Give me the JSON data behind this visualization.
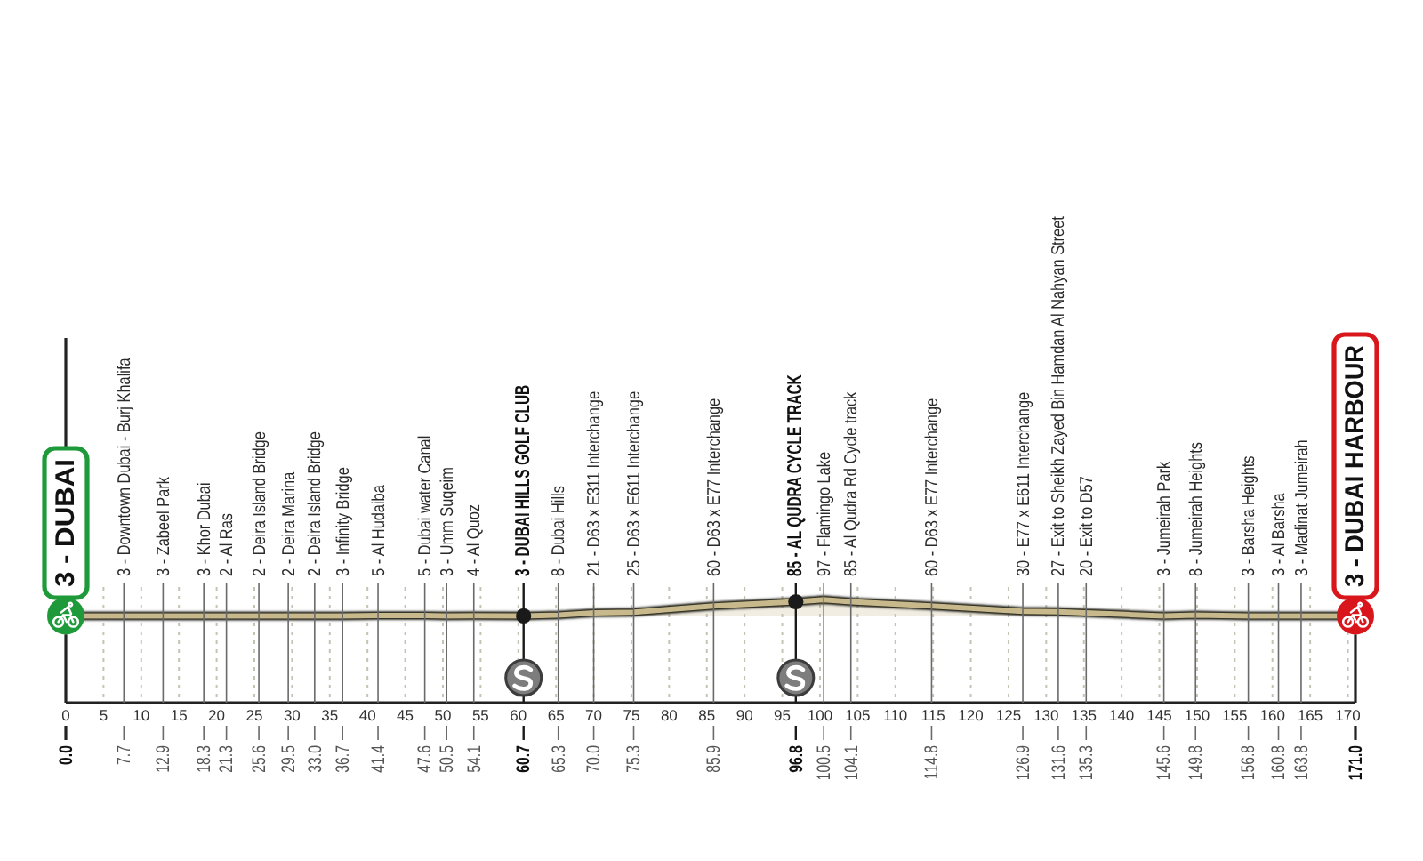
{
  "chart_data": {
    "type": "area",
    "xlim": [
      0,
      171
    ],
    "xticks": [
      0,
      5,
      10,
      15,
      20,
      25,
      30,
      35,
      40,
      45,
      50,
      55,
      60,
      65,
      70,
      75,
      80,
      85,
      90,
      95,
      100,
      105,
      110,
      115,
      120,
      125,
      130,
      135,
      140,
      145,
      150,
      155,
      160,
      165,
      170
    ],
    "x2lim": [
      0,
      171
    ],
    "x2ticks": [
      {
        "value": 0,
        "label": "0.0"
      },
      7.7,
      12.9,
      18.3,
      21.3,
      25.6,
      29.5,
      {
        "value": 33,
        "label": "33.0"
      },
      36.7,
      41.4,
      47.6,
      50.5,
      54.1,
      60.7,
      65.3,
      {
        "value": 70,
        "label": "70.0"
      },
      75.3,
      85.9,
      96.8,
      100.5,
      104.1,
      114.8,
      126.9,
      131.6,
      135.3,
      145.6,
      149.8,
      156.8,
      160.8,
      163.8,
      {
        "value": 171,
        "label": "171.0"
      }
    ],
    "ylim": [
      -500,
      170
    ],
    "tick_labels": "x",
    "grid": "x",
    "series": [
      {
        "color": "#c7b98b",
        "x": [
          0,
          7.7,
          12.9,
          18.3,
          21.3,
          25.6,
          29.5,
          33.0,
          36.7,
          41.4,
          47.6,
          50.5,
          54.1,
          60.7,
          65.3,
          70.0,
          75.3,
          85.9,
          96.8,
          100.5,
          104.1,
          114.8,
          126.9,
          131.6,
          135.3,
          145.6,
          149.8,
          156.8,
          160.8,
          163.8,
          171.0
        ],
        "values": [
          3,
          3,
          3,
          3,
          2,
          2,
          2,
          2,
          3,
          5,
          5,
          3,
          4,
          3,
          8,
          21,
          25,
          60,
          85,
          97,
          85,
          60,
          30,
          27,
          20,
          3,
          8,
          3,
          3,
          3,
          3
        ],
        "value_labels": [
          null,
          "3 - Downtown Dubai - Burj Khalifa",
          "3 - Zabeel Park",
          "3 - Khor Dubai",
          "2 - Al Ras",
          "2 - Deira Island Bridge",
          "2 - Deira Marina",
          "2 - Deira Island Bridge",
          "3 - Infinity Bridge",
          "5 - Al Hudaiba",
          "5 - Dubai water Canal",
          "3 - Umm Suqeim",
          "4 - Al Quoz",
          null,
          "8 - Dubai Hills",
          "21 - D63 x E311 Interchange",
          "25 - D63 x E611 Interchange",
          "60 - D63 x E77 Interchange",
          null,
          "97 - Flamingo Lake",
          "85 - Al Qudra Rd Cycle track",
          "60 - D63 x E77 Interchange",
          "30 - E77 x E611 Interchange",
          "27 - Exit to Sheikh Zayed Bin Hamdan Al Nahyan Street",
          "20 - Exit to D57",
          "3 - Jumeirah Park",
          "8 - Jumeirah Heights",
          "3 - Barsha Heights",
          "3 - Al Barsha",
          "3 - Madinat Jumeirah",
          null
        ]
      },
      {
        "type": "scatter",
        "marker": "circle",
        "color": "#1a1a1a",
        "x": [
          60.7,
          96.8
        ],
        "values": [
          3,
          85
        ],
        "value_labels": [
          "3 - DUBAI HILLS GOLF CLUB",
          "85 - AL QUDRA CYCLE TRACK"
        ]
      },
      {
        "type": "scatter",
        "marker": "circle",
        "colors": [
          "#1f9a3a",
          "#d9161c"
        ],
        "x": [
          0,
          171.0
        ],
        "values": [
          3,
          3
        ],
        "value_labels": [
          "3 - DUBAI",
          "3 - DUBAI HARBOUR"
        ]
      }
    ]
  }
}
